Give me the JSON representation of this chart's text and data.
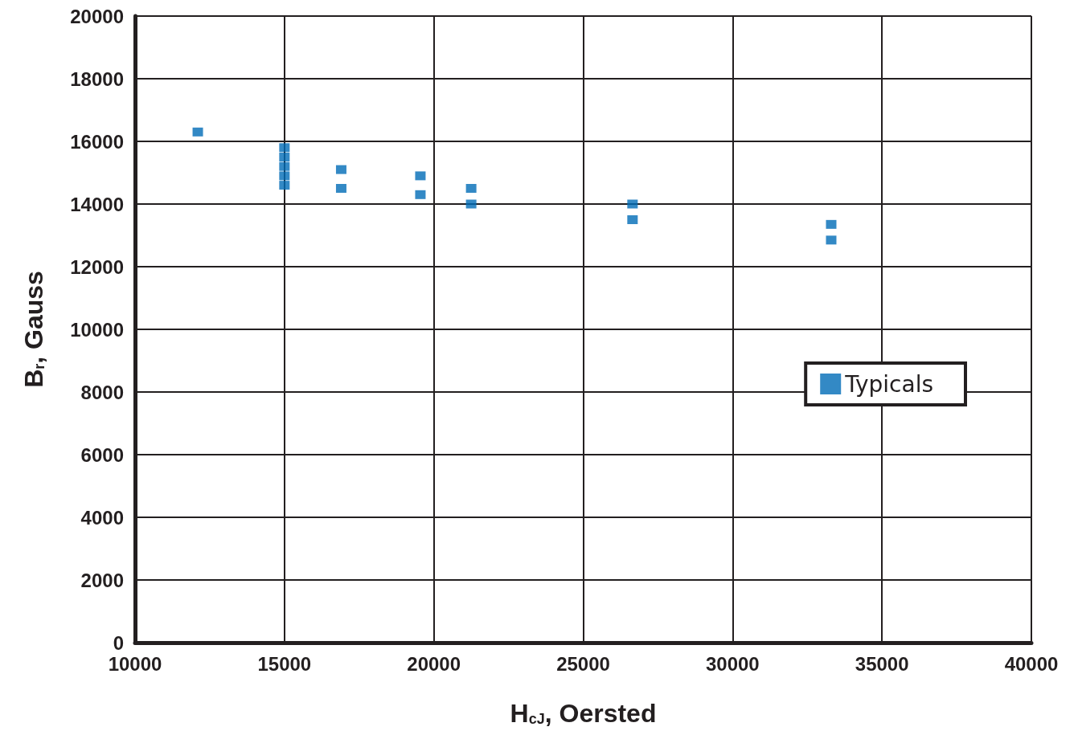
{
  "chart_data": {
    "type": "scatter",
    "xlabel": "H$_{cJ}$, Oersted",
    "ylabel": "B$_{r}$, Gauss",
    "series": [
      {
        "name": "Typicals",
        "color": "#006bb6",
        "x": [
          12100,
          15000,
          15000,
          15000,
          15000,
          15000,
          16900,
          16900,
          19550,
          19550,
          21250,
          21250,
          26650,
          26650,
          33300,
          33300
        ],
        "values": [
          16300,
          15800,
          15500,
          15200,
          14900,
          14600,
          15100,
          14500,
          14900,
          14300,
          14500,
          14000,
          14000,
          13500,
          13350,
          12850
        ]
      }
    ],
    "xlim": [
      10000,
      40000
    ],
    "xticks": [
      10000,
      15000,
      20000,
      25000,
      30000,
      35000,
      40000
    ],
    "ylim": [
      0,
      20000
    ],
    "yticks": [
      0,
      2000,
      4000,
      6000,
      8000,
      10000,
      12000,
      14000,
      16000,
      18000,
      20000
    ],
    "grid": true,
    "legend": "right",
    "marker": "square"
  }
}
